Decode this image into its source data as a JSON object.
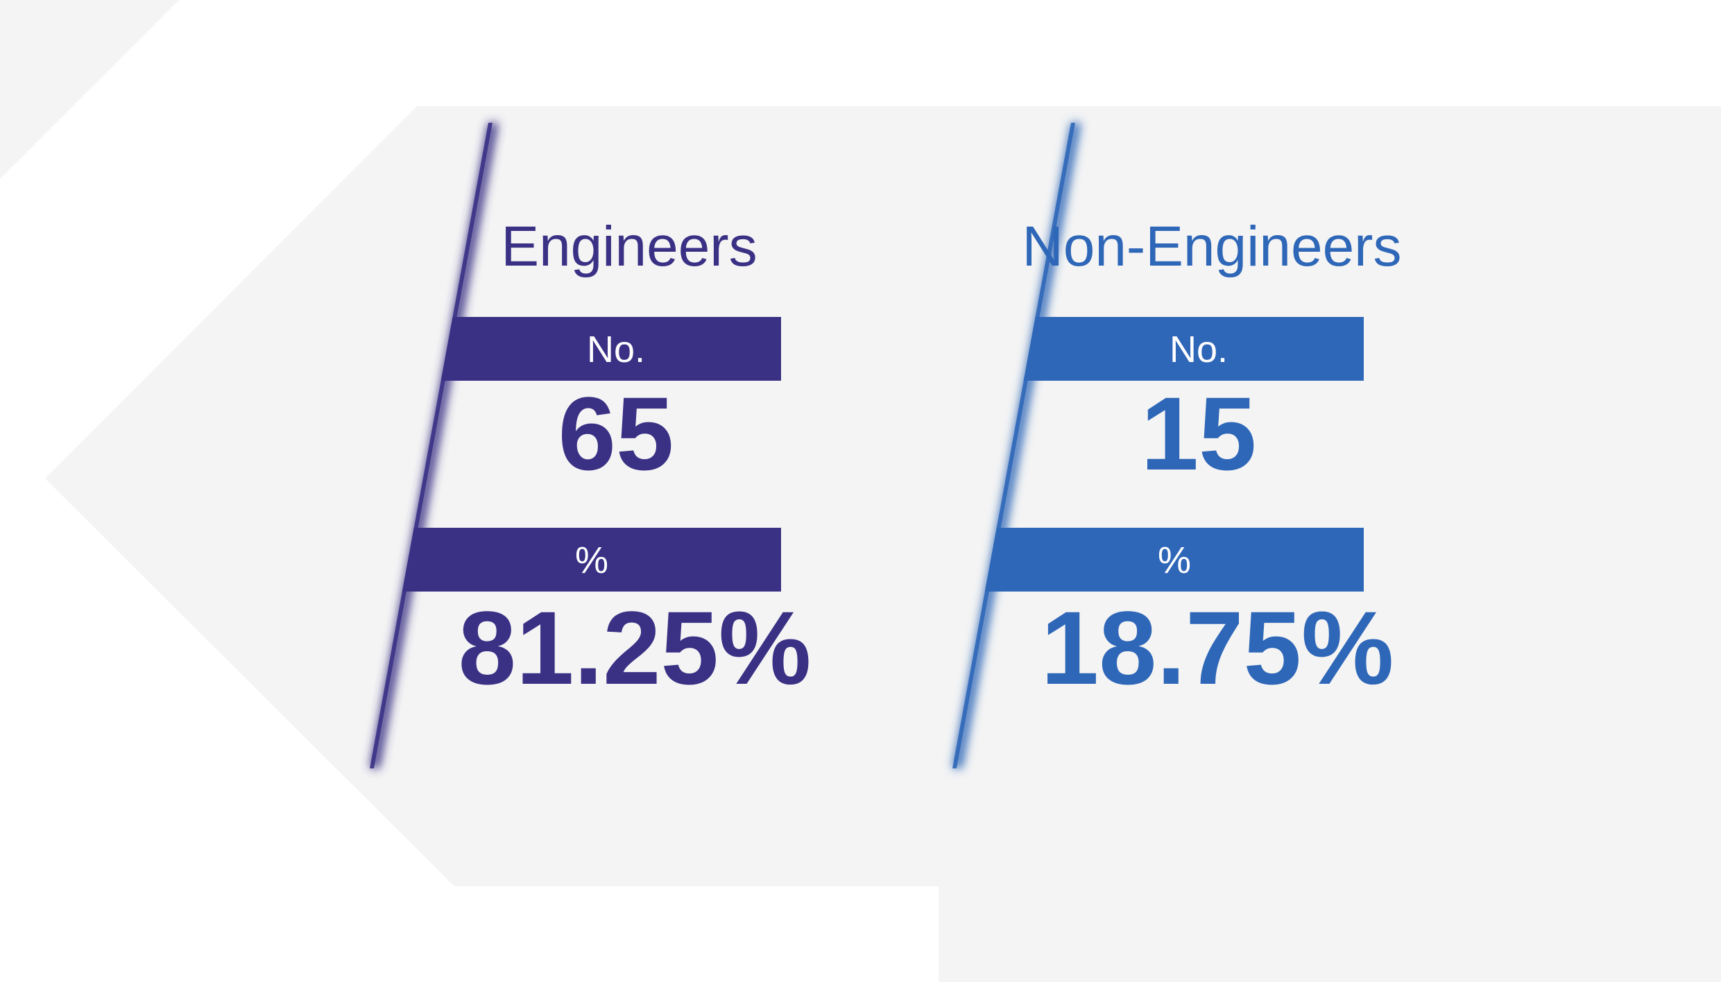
{
  "panels": [
    {
      "title": "Engineers",
      "count_label": "No.",
      "count": "65",
      "percent_label": "%",
      "percent": "81.25%"
    },
    {
      "title": "Non-Engineers",
      "count_label": "No.",
      "count": "15",
      "percent_label": "%",
      "percent": "18.75%"
    }
  ]
}
